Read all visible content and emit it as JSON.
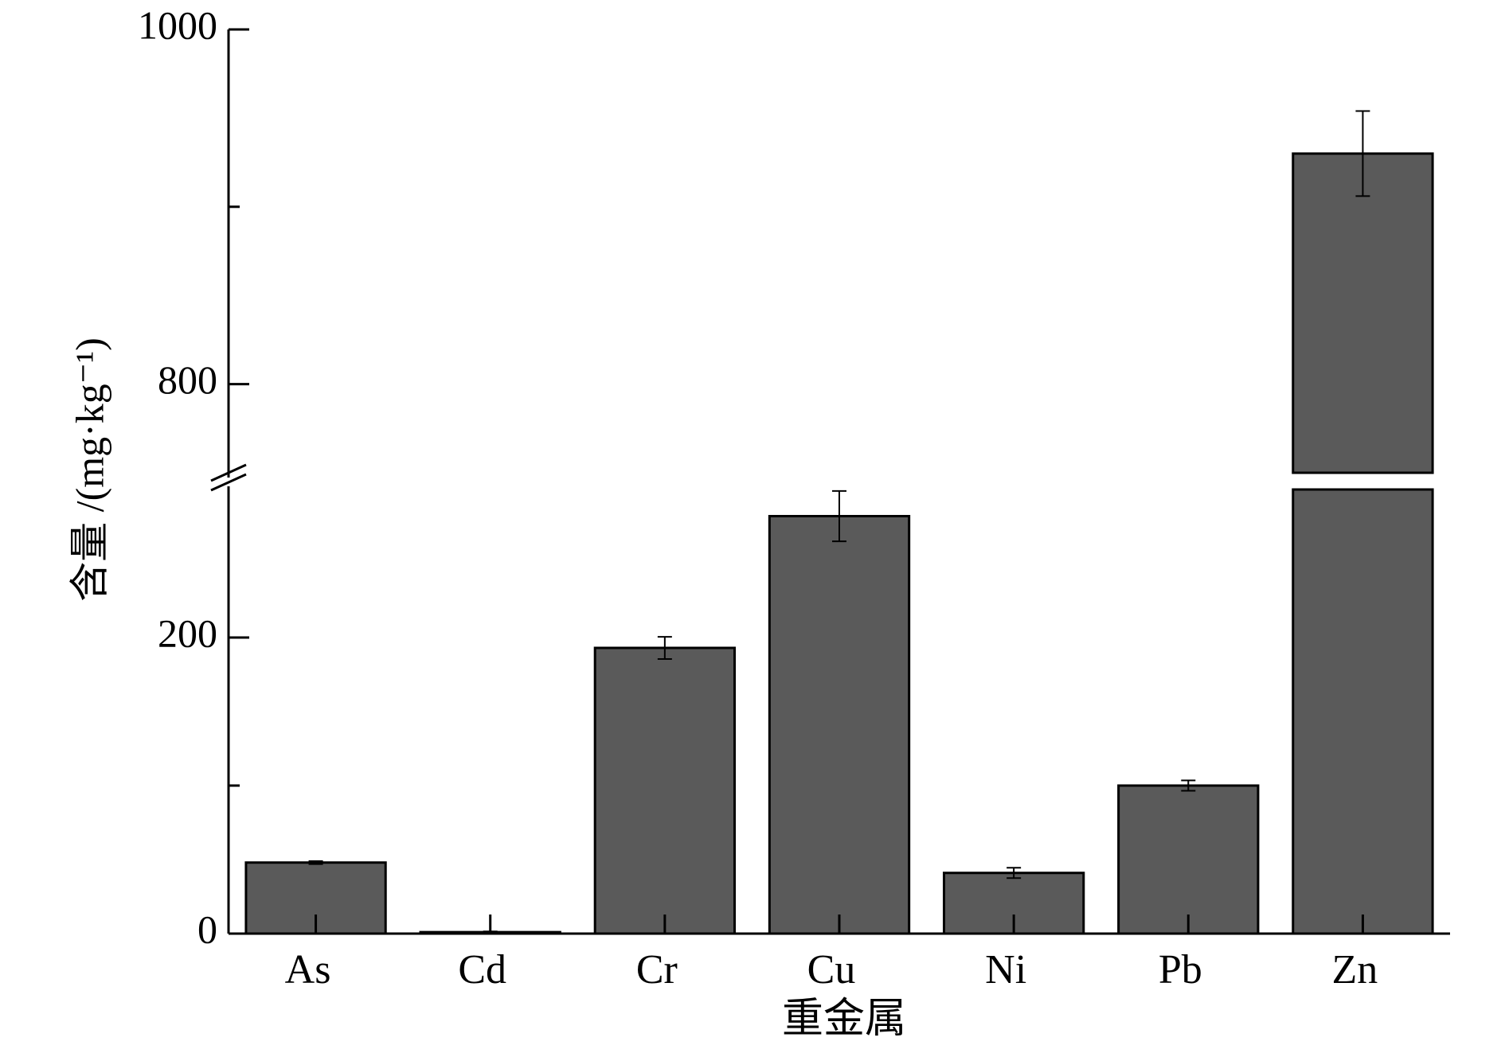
{
  "chart_data": {
    "type": "bar",
    "x_label": "重金属",
    "y_label": "含量 /(mg·kg⁻¹)",
    "categories": [
      "As",
      "Cd",
      "Cr",
      "Cu",
      "Ni",
      "Pb",
      "Zn"
    ],
    "values": [
      48,
      1,
      193,
      282,
      41,
      100,
      930
    ],
    "errors": [
      1,
      0.5,
      7.5,
      17,
      3.5,
      3.5,
      24
    ],
    "color": "#5a5a5a",
    "broken_axis": true,
    "ylim_lower": [
      0,
      300
    ],
    "ylim_upper": [
      750,
      1000
    ],
    "yticks": [
      0,
      200,
      800,
      1000
    ],
    "minor_yticks": [
      100,
      900
    ]
  }
}
